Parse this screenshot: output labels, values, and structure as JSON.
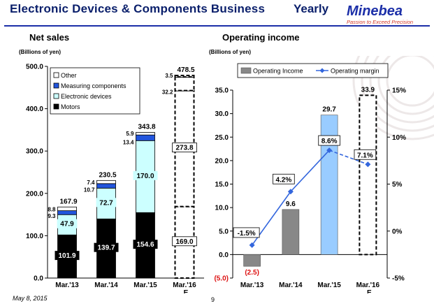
{
  "header": {
    "title": "Electronic Devices & Components Business",
    "period": "Yearly"
  },
  "logo": {
    "name": "Minebea",
    "tagline": "Passion to Exceed Precision"
  },
  "footer": {
    "date": "May 8, 2015",
    "page": "9"
  },
  "colors": {
    "motors": "#000000",
    "electronic": "#ccffff",
    "measuring": "#2255dd",
    "other": "#ffffff",
    "op_bar": "#888888",
    "op_bar_2015": "#99ccff",
    "margin_line": "#3366dd",
    "brand": "#1c2fa8"
  },
  "chart_data": [
    {
      "type": "bar",
      "stacked": true,
      "title": "Net sales",
      "ylabel": "(Billions of yen)",
      "ylim": [
        0,
        500
      ],
      "yticks": [
        "0.0",
        "100.0",
        "200.0",
        "300.0",
        "400.0",
        "500.0"
      ],
      "categories": [
        "Mar.'13",
        "Mar.'14",
        "Mar.'15",
        "Mar.'16"
      ],
      "category_suffix": [
        "",
        "",
        "",
        "E"
      ],
      "estimate_index": 3,
      "legend_order": [
        "Other",
        "Measuring components",
        "Electronic devices",
        "Motors"
      ],
      "series": [
        {
          "name": "Motors",
          "values": [
            101.9,
            139.7,
            154.6,
            169.0
          ],
          "labels": [
            "101.9",
            "139.7",
            "154.6",
            "169.0"
          ]
        },
        {
          "name": "Electronic devices",
          "values": [
            47.9,
            72.7,
            170.0,
            273.8
          ],
          "labels": [
            "47.9",
            "72.7",
            "170.0",
            "273.8"
          ]
        },
        {
          "name": "Measuring components",
          "values": [
            9.3,
            10.7,
            13.4,
            32.2
          ],
          "labels": [
            "9.3",
            "10.7",
            "13.4",
            "32.2"
          ]
        },
        {
          "name": "Other",
          "values": [
            8.8,
            7.4,
            5.9,
            3.5
          ],
          "labels": [
            "8.8",
            "7.4",
            "5.9",
            "3.5"
          ]
        }
      ],
      "totals": [
        "167.9",
        "230.5",
        "343.8",
        "478.5"
      ]
    },
    {
      "type": "bar",
      "title": "Operating income",
      "ylabel": "(Billions of yen)",
      "ylim": [
        -5,
        35
      ],
      "yticks_left": [
        "(5.0)",
        "0.0",
        "5.0",
        "10.0",
        "15.0",
        "20.0",
        "25.0",
        "30.0",
        "35.0"
      ],
      "y2lim": [
        -5,
        15
      ],
      "yticks_right": [
        "-5%",
        "0%",
        "5%",
        "10%",
        "15%"
      ],
      "categories": [
        "Mar.'13",
        "Mar.'14",
        "Mar.'15",
        "Mar.'16"
      ],
      "category_suffix": [
        "",
        "",
        "",
        "E"
      ],
      "estimate_index": 3,
      "legend": [
        "Operating Income",
        "Operating margin"
      ],
      "series": [
        {
          "name": "Operating Income",
          "values": [
            -2.5,
            9.6,
            29.7,
            33.9
          ],
          "labels": [
            "(2.5)",
            "9.6",
            "29.7",
            "33.9"
          ]
        },
        {
          "name": "Operating margin",
          "type": "line",
          "axis": "right",
          "values": [
            -1.5,
            4.2,
            8.6,
            7.1
          ],
          "labels": [
            "-1.5%",
            "4.2%",
            "8.6%",
            "7.1%"
          ]
        }
      ]
    }
  ]
}
